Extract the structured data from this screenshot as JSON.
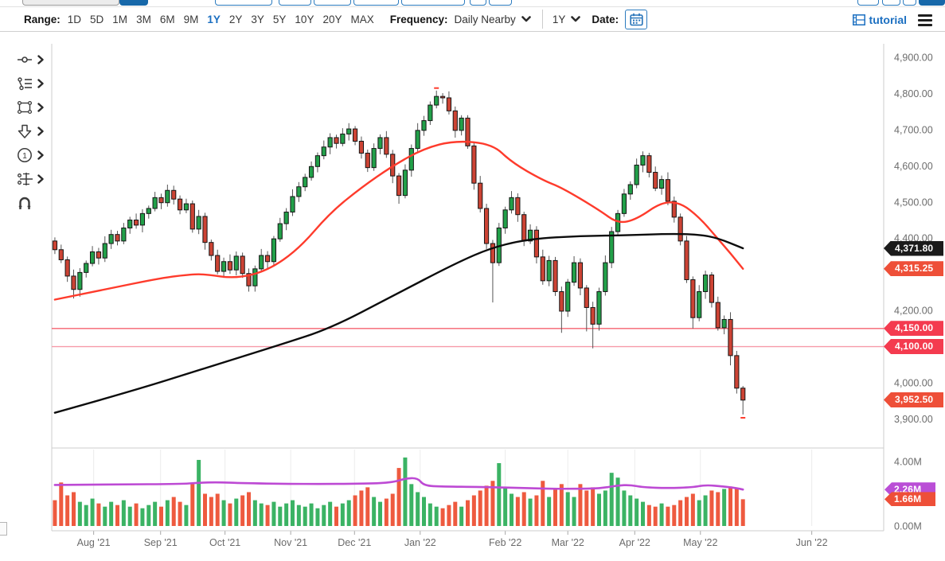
{
  "toolbar": {
    "range_label": "Range:",
    "ranges": [
      "1D",
      "5D",
      "1M",
      "3M",
      "6M",
      "9M",
      "1Y",
      "2Y",
      "3Y",
      "5Y",
      "10Y",
      "20Y",
      "MAX"
    ],
    "selected_range": "1Y",
    "frequency_label": "Frequency:",
    "frequency_value": "Daily Nearby",
    "period_value": "1Y",
    "date_label": "Date:",
    "tutorial_label": "tutorial"
  },
  "colors": {
    "accent_blue": "#1b6fc1",
    "candle_up": "#22a049",
    "candle_down": "#cc4334",
    "ma_red": "#fe3b2c",
    "ma_black": "#0c0c0c",
    "volume_ma_purple": "#bd4ad4",
    "badge_black": "#1b1b1b",
    "badge_orange_red": "#ee4f38",
    "badge_red": "#f43b4f",
    "badge_purple": "#ba4ed6",
    "hline_4150": "#f4626f",
    "hline_4100": "#f79aa9"
  },
  "chart": {
    "price_labels": [
      {
        "text": "4,900.00",
        "price": 4900
      },
      {
        "text": "4,800.00",
        "price": 4800
      },
      {
        "text": "4,700.00",
        "price": 4700
      },
      {
        "text": "4,600.00",
        "price": 4600
      },
      {
        "text": "4,500.00",
        "price": 4500
      },
      {
        "text": "4,400.00",
        "price": 4400
      },
      {
        "text": "4,200.00",
        "price": 4200
      },
      {
        "text": "4,000.00",
        "price": 4000
      },
      {
        "text": "3,900.00",
        "price": 3900
      }
    ],
    "volume_labels": [
      {
        "text": "4.00M",
        "v": 4
      },
      {
        "text": "0.00M",
        "v": 0
      }
    ],
    "badges": [
      {
        "text": "4,371.80",
        "price": 4371.8,
        "color": "#1b1b1b",
        "name": "last-price-badge"
      },
      {
        "text": "4,315.25",
        "price": 4315.25,
        "color": "#ee4f38",
        "name": "ma50-value-badge"
      },
      {
        "text": "4,150.00",
        "price": 4150,
        "color": "#f43b4f",
        "name": "hline-4150-badge"
      },
      {
        "text": "4,100.00",
        "price": 4100,
        "color": "#f43b4f",
        "name": "hline-4100-badge"
      },
      {
        "text": "3,952.50",
        "price": 3952.5,
        "color": "#ee4f38",
        "name": "close-price-badge"
      }
    ],
    "vol_badges": [
      {
        "text": "2.26M",
        "v": 2.26,
        "color": "#ba4ed6",
        "name": "volume-ma-badge"
      },
      {
        "text": "1.66M",
        "v": 1.66,
        "color": "#ee4f38",
        "name": "volume-value-badge"
      }
    ]
  },
  "chart_data": {
    "type": "candlestick",
    "title": "",
    "xlabel": "",
    "ylabel": "",
    "legend_position": "none",
    "grid": "volume-panel-vertical-only",
    "price_ylim": [
      3826,
      4931
    ],
    "volume_ylim": [
      0,
      4.74
    ],
    "slots": 133,
    "x_ticks": [
      {
        "label": "Aug '21",
        "i": 6.2
      },
      {
        "label": "Sep '21",
        "i": 16.9
      },
      {
        "label": "Oct '21",
        "i": 27.2
      },
      {
        "label": "Nov '21",
        "i": 37.7
      },
      {
        "label": "Dec '21",
        "i": 47.9
      },
      {
        "label": "Jan '22",
        "i": 58.4
      },
      {
        "label": "Feb '22",
        "i": 72
      },
      {
        "label": "Mar '22",
        "i": 82
      },
      {
        "label": "Apr '22",
        "i": 92.7
      },
      {
        "label": "May '22",
        "i": 103.2
      },
      {
        "label": "Jun '22",
        "i": 121
      }
    ],
    "candles": [
      [
        4392,
        4402,
        4356,
        4368
      ],
      [
        4368,
        4382,
        4331,
        4340
      ],
      [
        4340,
        4349,
        4279,
        4295
      ],
      [
        4295,
        4313,
        4233,
        4258
      ],
      [
        4258,
        4317,
        4238,
        4305
      ],
      [
        4305,
        4338,
        4291,
        4330
      ],
      [
        4330,
        4378,
        4322,
        4362
      ],
      [
        4362,
        4373,
        4327,
        4345
      ],
      [
        4345,
        4405,
        4334,
        4385
      ],
      [
        4385,
        4423,
        4370,
        4410
      ],
      [
        4410,
        4420,
        4380,
        4392
      ],
      [
        4392,
        4442,
        4383,
        4428
      ],
      [
        4428,
        4459,
        4412,
        4450
      ],
      [
        4450,
        4468,
        4426,
        4436
      ],
      [
        4436,
        4480,
        4416,
        4468
      ],
      [
        4468,
        4490,
        4454,
        4482
      ],
      [
        4482,
        4528,
        4474,
        4512
      ],
      [
        4512,
        4523,
        4480,
        4498
      ],
      [
        4498,
        4548,
        4487,
        4532
      ],
      [
        4532,
        4545,
        4493,
        4508
      ],
      [
        4508,
        4518,
        4466,
        4478
      ],
      [
        4478,
        4509,
        4469,
        4495
      ],
      [
        4495,
        4504,
        4415,
        4425
      ],
      [
        4425,
        4478,
        4411,
        4460
      ],
      [
        4460,
        4470,
        4368,
        4388
      ],
      [
        4388,
        4396,
        4338,
        4352
      ],
      [
        4352,
        4368,
        4300,
        4308
      ],
      [
        4308,
        4346,
        4290,
        4335
      ],
      [
        4335,
        4355,
        4301,
        4312
      ],
      [
        4312,
        4363,
        4297,
        4350
      ],
      [
        4350,
        4360,
        4290,
        4302
      ],
      [
        4302,
        4316,
        4252,
        4268
      ],
      [
        4268,
        4324,
        4252,
        4315
      ],
      [
        4315,
        4370,
        4305,
        4352
      ],
      [
        4352,
        4364,
        4315,
        4335
      ],
      [
        4335,
        4406,
        4321,
        4398
      ],
      [
        4398,
        4456,
        4390,
        4440
      ],
      [
        4440,
        4483,
        4422,
        4472
      ],
      [
        4472,
        4535,
        4461,
        4515
      ],
      [
        4515,
        4555,
        4500,
        4542
      ],
      [
        4542,
        4578,
        4530,
        4568
      ],
      [
        4568,
        4612,
        4559,
        4598
      ],
      [
        4598,
        4637,
        4582,
        4628
      ],
      [
        4628,
        4670,
        4618,
        4652
      ],
      [
        4652,
        4690,
        4632,
        4678
      ],
      [
        4678,
        4686,
        4648,
        4662
      ],
      [
        4662,
        4704,
        4654,
        4688
      ],
      [
        4688,
        4718,
        4670,
        4702
      ],
      [
        4702,
        4710,
        4657,
        4668
      ],
      [
        4668,
        4681,
        4620,
        4635
      ],
      [
        4635,
        4645,
        4583,
        4595
      ],
      [
        4595,
        4662,
        4586,
        4648
      ],
      [
        4648,
        4687,
        4632,
        4678
      ],
      [
        4678,
        4696,
        4622,
        4632
      ],
      [
        4632,
        4644,
        4552,
        4572
      ],
      [
        4572,
        4580,
        4495,
        4518
      ],
      [
        4518,
        4604,
        4510,
        4588
      ],
      [
        4588,
        4659,
        4570,
        4648
      ],
      [
        4648,
        4718,
        4637,
        4698
      ],
      [
        4698,
        4738,
        4683,
        4725
      ],
      [
        4725,
        4778,
        4713,
        4768
      ],
      [
        4768,
        4808,
        4759,
        4792
      ],
      [
        4792,
        4801,
        4772,
        4788
      ],
      [
        4788,
        4806,
        4742,
        4752
      ],
      [
        4752,
        4764,
        4678,
        4698
      ],
      [
        4698,
        4740,
        4684,
        4732
      ],
      [
        4732,
        4740,
        4647,
        4655
      ],
      [
        4655,
        4666,
        4534,
        4552
      ],
      [
        4552,
        4572,
        4471,
        4482
      ],
      [
        4482,
        4495,
        4370,
        4385
      ],
      [
        4385,
        4395,
        4222,
        4332
      ],
      [
        4332,
        4442,
        4323,
        4428
      ],
      [
        4428,
        4487,
        4412,
        4478
      ],
      [
        4478,
        4530,
        4468,
        4512
      ],
      [
        4512,
        4524,
        4445,
        4465
      ],
      [
        4465,
        4473,
        4378,
        4392
      ],
      [
        4392,
        4438,
        4384,
        4422
      ],
      [
        4422,
        4433,
        4330,
        4348
      ],
      [
        4348,
        4368,
        4271,
        4282
      ],
      [
        4282,
        4351,
        4267,
        4338
      ],
      [
        4338,
        4348,
        4240,
        4252
      ],
      [
        4252,
        4266,
        4138,
        4198
      ],
      [
        4198,
        4287,
        4182,
        4278
      ],
      [
        4278,
        4350,
        4268,
        4332
      ],
      [
        4332,
        4344,
        4242,
        4262
      ],
      [
        4262,
        4270,
        4142,
        4208
      ],
      [
        4208,
        4224,
        4095,
        4162
      ],
      [
        4162,
        4263,
        4144,
        4252
      ],
      [
        4252,
        4352,
        4241,
        4332
      ],
      [
        4332,
        4431,
        4317,
        4418
      ],
      [
        4418,
        4478,
        4406,
        4468
      ],
      [
        4468,
        4536,
        4459,
        4522
      ],
      [
        4522,
        4557,
        4506,
        4548
      ],
      [
        4548,
        4620,
        4538,
        4602
      ],
      [
        4602,
        4640,
        4582,
        4628
      ],
      [
        4628,
        4636,
        4568,
        4582
      ],
      [
        4582,
        4598,
        4530,
        4538
      ],
      [
        4538,
        4573,
        4520,
        4562
      ],
      [
        4562,
        4582,
        4491,
        4502
      ],
      [
        4502,
        4515,
        4443,
        4458
      ],
      [
        4458,
        4468,
        4380,
        4392
      ],
      [
        4392,
        4406,
        4276,
        4285
      ],
      [
        4285,
        4294,
        4150,
        4180
      ],
      [
        4180,
        4270,
        4170,
        4252
      ],
      [
        4252,
        4310,
        4232,
        4298
      ],
      [
        4298,
        4306,
        4208,
        4222
      ],
      [
        4222,
        4238,
        4144,
        4152
      ],
      [
        4152,
        4186,
        4134,
        4175
      ],
      [
        4175,
        4195,
        4048,
        4075
      ],
      [
        4075,
        4088,
        3970,
        3985
      ],
      [
        3985,
        3991,
        3912,
        3952
      ]
    ],
    "volume": [
      1.6,
      2.7,
      1.9,
      2.1,
      1.5,
      1.3,
      1.7,
      1.4,
      1.2,
      1.5,
      1.3,
      1.6,
      1.2,
      1.4,
      1.1,
      1.3,
      1.5,
      1.2,
      1.6,
      1.8,
      1.5,
      1.3,
      2.6,
      4.1,
      2.0,
      1.8,
      2.0,
      1.6,
      1.4,
      1.7,
      1.9,
      2.1,
      1.6,
      1.4,
      1.3,
      1.5,
      1.2,
      1.4,
      1.6,
      1.3,
      1.2,
      1.4,
      1.1,
      1.3,
      1.5,
      1.2,
      1.4,
      1.6,
      1.9,
      2.2,
      2.4,
      1.8,
      1.5,
      1.7,
      2.0,
      3.6,
      4.25,
      2.6,
      2.1,
      1.8,
      1.4,
      1.2,
      1.1,
      1.3,
      1.5,
      1.2,
      1.6,
      1.9,
      2.2,
      2.5,
      2.8,
      3.9,
      2.4,
      2.0,
      1.8,
      2.1,
      1.7,
      1.9,
      2.8,
      1.8,
      2.3,
      2.6,
      2.1,
      1.8,
      2.6,
      2.2,
      2.4,
      2.0,
      2.2,
      3.3,
      3.0,
      2.2,
      1.9,
      1.7,
      1.5,
      1.3,
      1.2,
      1.4,
      1.2,
      1.3,
      1.6,
      1.8,
      2.0,
      1.6,
      1.9,
      2.2,
      2.1,
      2.3,
      2.45,
      2.35,
      1.66
    ],
    "overlays": {
      "ma_red": {
        "color": "#fe3b2c",
        "width": 2.4,
        "points": [
          [
            0,
            4230
          ],
          [
            8,
            4258
          ],
          [
            17,
            4290
          ],
          [
            22,
            4300
          ],
          [
            24,
            4300
          ],
          [
            29,
            4288
          ],
          [
            34,
            4310
          ],
          [
            39,
            4370
          ],
          [
            44,
            4470
          ],
          [
            49,
            4540
          ],
          [
            54,
            4600
          ],
          [
            59,
            4648
          ],
          [
            64,
            4670
          ],
          [
            70,
            4660
          ],
          [
            73,
            4610
          ],
          [
            78,
            4560
          ],
          [
            81,
            4540
          ],
          [
            87,
            4478
          ],
          [
            90,
            4440
          ],
          [
            93,
            4452
          ],
          [
            97,
            4500
          ],
          [
            100,
            4498
          ],
          [
            103,
            4458
          ],
          [
            106,
            4398
          ],
          [
            108,
            4358
          ],
          [
            110,
            4315
          ]
        ]
      },
      "ma_black": {
        "color": "#0c0c0c",
        "width": 2.4,
        "points": [
          [
            0,
            3917
          ],
          [
            12,
            3975
          ],
          [
            24,
            4040
          ],
          [
            36,
            4105
          ],
          [
            44,
            4150
          ],
          [
            54,
            4240
          ],
          [
            64,
            4330
          ],
          [
            70,
            4375
          ],
          [
            76,
            4398
          ],
          [
            84,
            4406
          ],
          [
            92,
            4408
          ],
          [
            98,
            4412
          ],
          [
            103,
            4410
          ],
          [
            106,
            4400
          ],
          [
            110,
            4372
          ]
        ]
      },
      "vol_ma": {
        "color": "#bd4ad4",
        "width": 2.6,
        "points": [
          [
            0,
            2.55
          ],
          [
            10,
            2.58
          ],
          [
            20,
            2.6
          ],
          [
            23,
            2.68
          ],
          [
            26,
            2.72
          ],
          [
            30,
            2.65
          ],
          [
            40,
            2.6
          ],
          [
            50,
            2.62
          ],
          [
            54,
            2.7
          ],
          [
            56,
            2.95
          ],
          [
            58,
            2.98
          ],
          [
            59,
            2.5
          ],
          [
            62,
            2.45
          ],
          [
            68,
            2.42
          ],
          [
            76,
            2.35
          ],
          [
            80,
            2.3
          ],
          [
            86,
            2.32
          ],
          [
            88,
            2.38
          ],
          [
            90,
            2.52
          ],
          [
            92,
            2.55
          ],
          [
            94,
            2.4
          ],
          [
            98,
            2.35
          ],
          [
            102,
            2.4
          ],
          [
            104,
            2.55
          ],
          [
            107,
            2.45
          ],
          [
            109,
            2.35
          ],
          [
            110,
            2.26
          ]
        ]
      }
    },
    "hlines": [
      {
        "price": 4150,
        "color": "#f4626f",
        "width": 1.4
      },
      {
        "price": 4100,
        "color": "#f79aa9",
        "width": 1.4
      }
    ],
    "markers": [
      {
        "i": 61,
        "price": 4815,
        "color": "#fe3b2c"
      },
      {
        "i": 110,
        "price": 3903,
        "color": "#fe3b2c"
      }
    ],
    "colors": {
      "up": "#22a049",
      "down": "#cc4334",
      "candle_stroke": "#161616",
      "wick": "#555555",
      "vol_up": "#3bb364",
      "vol_down": "#ee5a3f"
    }
  }
}
